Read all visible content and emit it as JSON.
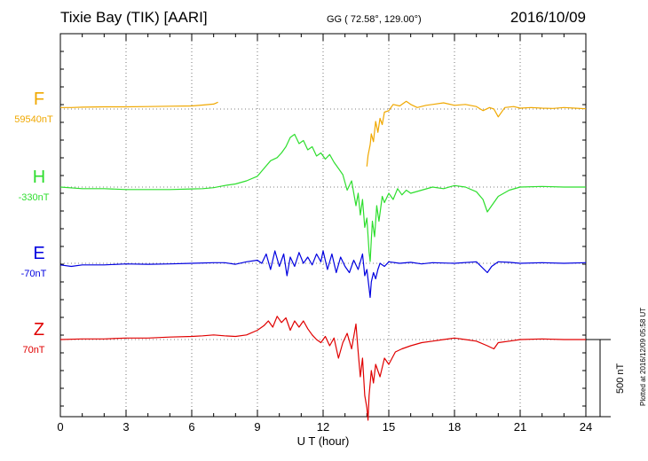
{
  "header": {
    "station": "Tixie Bay (TIK)  [AARI]",
    "coords": "GG ( 72.58°, 129.00°)",
    "date": "2016/10/09"
  },
  "side_note": "Plotted at 2016/12/09 05:58 UT",
  "scale_label": "500 nT",
  "chart_data": {
    "type": "line",
    "title": "Tixie Bay (TIK)  [AARI]",
    "xlabel": "U T (hour)",
    "xlim": [
      0,
      24
    ],
    "xticks": [
      0,
      3,
      6,
      9,
      12,
      15,
      18,
      21,
      24
    ],
    "xtick_labels": [
      "0",
      "3",
      "6",
      "9",
      "12",
      "15",
      "18",
      "21",
      "24"
    ],
    "grid": true,
    "scale_bar_nT": 500,
    "series": [
      {
        "name": "F",
        "baseline_label": "59540nT",
        "color": "#f0a800",
        "segments": [
          {
            "t": [
              0,
              0.5,
              1,
              2,
              3,
              4,
              5,
              6,
              6.5,
              7,
              7.2
            ],
            "v": [
              5,
              5,
              6,
              7,
              7,
              8,
              9,
              10,
              13,
              16,
              22
            ]
          },
          {
            "t": [
              14.0,
              14.05,
              14.15,
              14.2,
              14.3,
              14.4,
              14.5,
              14.6,
              14.7,
              14.8,
              15.0,
              15.2,
              15.5,
              15.8,
              16.0,
              16.3,
              16.7,
              17.0,
              17.5,
              18.0,
              18.5,
              19.0,
              19.3,
              19.6,
              19.8,
              20.0,
              20.3,
              20.7,
              21.0,
              21.5,
              22.0,
              22.5,
              23.0,
              23.5,
              24.0
            ],
            "v": [
              -185,
              -150,
              -115,
              -80,
              -105,
              -40,
              -75,
              -30,
              -50,
              -10,
              -5,
              15,
              10,
              25,
              15,
              5,
              12,
              15,
              20,
              12,
              15,
              8,
              -5,
              5,
              0,
              -25,
              5,
              8,
              3,
              5,
              3,
              2,
              5,
              3,
              1
            ]
          }
        ]
      },
      {
        "name": "H",
        "baseline_label": "-330nT",
        "color": "#2ede2e",
        "segments": [
          {
            "t": [
              0,
              1,
              2,
              3,
              4,
              5,
              6,
              6.5,
              7,
              7.5,
              8,
              8.5,
              9,
              9.3,
              9.6,
              9.9,
              10.1,
              10.3,
              10.5,
              10.7,
              10.9,
              11.1,
              11.3,
              11.5,
              11.7,
              11.9,
              12.1,
              12.3,
              12.5,
              12.7,
              12.9,
              13.1,
              13.3,
              13.5,
              13.6,
              13.7,
              13.8,
              13.9,
              14.0,
              14.1,
              14.15,
              14.2,
              14.25,
              14.35,
              14.45,
              14.55,
              14.7,
              14.8,
              15.0,
              15.2,
              15.4,
              15.6,
              15.8,
              16.0,
              16.5,
              17.0,
              17.5,
              18.0,
              18.5,
              19.0,
              19.3,
              19.5,
              19.7,
              20.0,
              20.5,
              21.0,
              22.0,
              23.0,
              24.0
            ],
            "v": [
              0,
              -5,
              -5,
              -8,
              -8,
              -8,
              -6,
              -5,
              -2,
              5,
              10,
              20,
              35,
              60,
              85,
              95,
              110,
              130,
              160,
              170,
              140,
              150,
              120,
              130,
              100,
              110,
              90,
              105,
              80,
              60,
              40,
              -10,
              20,
              -60,
              -20,
              -90,
              -40,
              -130,
              -100,
              -210,
              -240,
              -170,
              -110,
              -160,
              -60,
              -110,
              -30,
              -50,
              -20,
              -40,
              -5,
              -25,
              -10,
              -20,
              -10,
              0,
              -5,
              5,
              0,
              -15,
              -40,
              -80,
              -60,
              -30,
              -10,
              0,
              2,
              0,
              0
            ]
          }
        ]
      },
      {
        "name": "E",
        "baseline_label": "-70nT",
        "color": "#0000e0",
        "segments": [
          {
            "t": [
              0,
              0.5,
              1,
              2,
              3,
              4,
              5,
              6,
              7,
              7.5,
              8,
              8.5,
              9,
              9.2,
              9.4,
              9.6,
              9.8,
              10.0,
              10.2,
              10.35,
              10.5,
              10.7,
              10.9,
              11.1,
              11.3,
              11.5,
              11.7,
              11.9,
              12.0,
              12.2,
              12.4,
              12.6,
              12.8,
              13.0,
              13.2,
              13.4,
              13.6,
              13.8,
              13.9,
              14.0,
              14.1,
              14.15,
              14.2,
              14.3,
              14.4,
              14.5,
              14.6,
              14.8,
              15.0,
              15.5,
              16.0,
              16.5,
              17.0,
              18.0,
              19.0,
              19.5,
              19.7,
              20.0,
              20.5,
              21.0,
              22.0,
              23.0,
              24.0
            ],
            "v": [
              -5,
              -10,
              -5,
              -5,
              -2,
              -3,
              -2,
              0,
              2,
              2,
              -3,
              5,
              10,
              0,
              30,
              -20,
              40,
              -10,
              30,
              -40,
              20,
              -10,
              35,
              0,
              20,
              -5,
              30,
              5,
              40,
              -20,
              30,
              -30,
              20,
              -10,
              -30,
              10,
              -20,
              30,
              -40,
              -20,
              -80,
              -110,
              -60,
              -30,
              -50,
              -20,
              0,
              -10,
              5,
              0,
              3,
              -2,
              2,
              0,
              5,
              -30,
              -10,
              5,
              3,
              0,
              2,
              0,
              2
            ]
          }
        ]
      },
      {
        "name": "Z",
        "baseline_label": "70nT",
        "color": "#e00000",
        "segments": [
          {
            "t": [
              0,
              1,
              2,
              3,
              4,
              5,
              6,
              6.5,
              7,
              7.5,
              8,
              8.5,
              9,
              9.3,
              9.5,
              9.7,
              9.9,
              10.1,
              10.3,
              10.5,
              10.7,
              10.9,
              11.1,
              11.3,
              11.5,
              11.7,
              11.9,
              12.1,
              12.3,
              12.5,
              12.7,
              12.9,
              13.1,
              13.3,
              13.5,
              13.6,
              13.7,
              13.8,
              13.9,
              14.0,
              14.05,
              14.1,
              14.2,
              14.3,
              14.4,
              14.6,
              14.8,
              15.0,
              15.3,
              15.6,
              16.0,
              16.5,
              17.0,
              17.5,
              18.0,
              18.5,
              19.0,
              19.5,
              19.8,
              20.0,
              20.5,
              21.0,
              22.0,
              23.0,
              24.0
            ],
            "v": [
              0,
              2,
              2,
              5,
              5,
              8,
              10,
              12,
              15,
              12,
              10,
              15,
              30,
              45,
              60,
              40,
              75,
              55,
              70,
              30,
              60,
              40,
              60,
              35,
              15,
              0,
              -10,
              10,
              -20,
              5,
              -60,
              -10,
              20,
              -30,
              50,
              -40,
              -120,
              -60,
              -180,
              -220,
              -260,
              -180,
              -100,
              -140,
              -80,
              -120,
              -60,
              -80,
              -40,
              -30,
              -20,
              -10,
              -5,
              0,
              5,
              0,
              -5,
              -20,
              -30,
              -10,
              -5,
              0,
              2,
              0,
              0
            ]
          }
        ]
      }
    ]
  }
}
